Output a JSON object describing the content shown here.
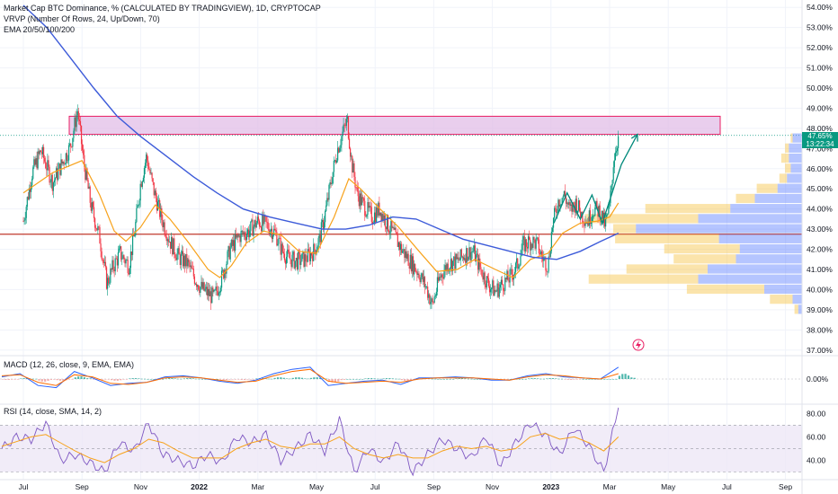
{
  "legend": {
    "main_title": "Market Cap BTC Dominance, % (CALCULATED BY TRADINGVIEW), 1D, CRYPTOCAP",
    "vrvp": "VRVP (Number Of Rows, 24, Up/Down, 70)",
    "ema": "EMA 20/50/100/200",
    "macd": "MACD (12, 26, close, 9, EMA, EMA)",
    "rsi": "RSI (14, close, SMA, 14, 2)"
  },
  "price_tag": {
    "value": "47.65%",
    "countdown": "13:22:34"
  },
  "colors": {
    "up": "#089981",
    "down": "#f23645",
    "ema_fast": "#f7a21b",
    "ema_slow": "#3d5bd9",
    "zone_fill": "#e1bee7",
    "zone_border": "#e91e63",
    "support": "#c0392b",
    "rsi_line": "#7e57c2",
    "rsi_band": "#ede7f6",
    "vp_up": "#5b7fff",
    "vp_down": "#f6c344"
  },
  "chart_data": [
    {
      "type": "candlestick",
      "title": "Market Cap BTC Dominance, % (CALCULATED BY TRADINGVIEW), 1D, CRYPTOCAP",
      "x_ticks": [
        "Jul",
        "Sep",
        "Nov",
        "2022",
        "Mar",
        "May",
        "Jul",
        "Sep",
        "Nov",
        "2023",
        "Mar",
        "May",
        "Jul",
        "Sep"
      ],
      "y_ticks": [
        "54.00%",
        "53.00%",
        "52.00%",
        "51.00%",
        "50.00%",
        "49.00%",
        "48.00%",
        "47.00%",
        "46.00%",
        "45.00%",
        "44.00%",
        "43.00%",
        "42.00%",
        "41.00%",
        "40.00%",
        "39.00%",
        "38.00%",
        "37.00%"
      ],
      "ylim": [
        36.9,
        54.1
      ],
      "last_value": 47.65,
      "resistance_zone": [
        47.7,
        48.6
      ],
      "support_level": 42.75,
      "close_path": [
        {
          "m": 0,
          "v": 43.4
        },
        {
          "m": 0.3,
          "v": 45.8
        },
        {
          "m": 0.6,
          "v": 46.9
        },
        {
          "m": 1.0,
          "v": 45.3
        },
        {
          "m": 1.3,
          "v": 46.2
        },
        {
          "m": 1.6,
          "v": 47.1
        },
        {
          "m": 1.85,
          "v": 48.9
        },
        {
          "m": 2.05,
          "v": 46.4
        },
        {
          "m": 2.3,
          "v": 44.2
        },
        {
          "m": 2.6,
          "v": 42.6
        },
        {
          "m": 2.85,
          "v": 40.3
        },
        {
          "m": 3.05,
          "v": 41.1
        },
        {
          "m": 3.3,
          "v": 41.8
        },
        {
          "m": 3.6,
          "v": 41.2
        },
        {
          "m": 3.8,
          "v": 42.9
        },
        {
          "m": 4.0,
          "v": 45.3
        },
        {
          "m": 4.2,
          "v": 46.6
        },
        {
          "m": 4.45,
          "v": 44.9
        },
        {
          "m": 4.7,
          "v": 43.6
        },
        {
          "m": 5.0,
          "v": 42.4
        },
        {
          "m": 5.3,
          "v": 41.6
        },
        {
          "m": 5.6,
          "v": 41.3
        },
        {
          "m": 5.8,
          "v": 40.7
        },
        {
          "m": 6.05,
          "v": 40.1
        },
        {
          "m": 6.3,
          "v": 39.8
        },
        {
          "m": 6.5,
          "v": 39.6
        },
        {
          "m": 6.75,
          "v": 40.5
        },
        {
          "m": 7.05,
          "v": 42.0
        },
        {
          "m": 7.4,
          "v": 42.7
        },
        {
          "m": 7.7,
          "v": 42.9
        },
        {
          "m": 8.0,
          "v": 43.4
        },
        {
          "m": 8.3,
          "v": 43.2
        },
        {
          "m": 8.6,
          "v": 42.8
        },
        {
          "m": 8.8,
          "v": 42.0
        },
        {
          "m": 9.0,
          "v": 41.6
        },
        {
          "m": 9.3,
          "v": 41.4
        },
        {
          "m": 9.6,
          "v": 41.5
        },
        {
          "m": 9.9,
          "v": 41.9
        },
        {
          "m": 10.1,
          "v": 42.5
        },
        {
          "m": 10.3,
          "v": 43.8
        },
        {
          "m": 10.5,
          "v": 45.4
        },
        {
          "m": 10.7,
          "v": 46.9
        },
        {
          "m": 10.9,
          "v": 47.8
        },
        {
          "m": 11.05,
          "v": 48.4
        },
        {
          "m": 11.2,
          "v": 46.3
        },
        {
          "m": 11.4,
          "v": 44.7
        },
        {
          "m": 11.65,
          "v": 44.1
        },
        {
          "m": 11.9,
          "v": 43.6
        },
        {
          "m": 12.15,
          "v": 44.0
        },
        {
          "m": 12.4,
          "v": 43.3
        },
        {
          "m": 12.65,
          "v": 42.7
        },
        {
          "m": 12.9,
          "v": 42.0
        },
        {
          "m": 13.2,
          "v": 41.4
        },
        {
          "m": 13.5,
          "v": 40.8
        },
        {
          "m": 13.75,
          "v": 40.1
        },
        {
          "m": 13.95,
          "v": 39.2
        },
        {
          "m": 14.2,
          "v": 40.6
        },
        {
          "m": 14.5,
          "v": 41.3
        },
        {
          "m": 14.8,
          "v": 41.4
        },
        {
          "m": 15.1,
          "v": 41.8
        },
        {
          "m": 15.35,
          "v": 41.9
        },
        {
          "m": 15.6,
          "v": 41.0
        },
        {
          "m": 15.85,
          "v": 40.3
        },
        {
          "m": 16.1,
          "v": 39.9
        },
        {
          "m": 16.35,
          "v": 40.3
        },
        {
          "m": 16.6,
          "v": 40.6
        },
        {
          "m": 16.85,
          "v": 41.2
        },
        {
          "m": 17.05,
          "v": 42.2
        },
        {
          "m": 17.3,
          "v": 42.4
        },
        {
          "m": 17.5,
          "v": 42.3
        },
        {
          "m": 17.7,
          "v": 41.6
        },
        {
          "m": 17.9,
          "v": 41.2
        },
        {
          "m": 18.05,
          "v": 43.2
        },
        {
          "m": 18.25,
          "v": 44.4
        },
        {
          "m": 18.45,
          "v": 44.7
        },
        {
          "m": 18.65,
          "v": 43.9
        },
        {
          "m": 18.85,
          "v": 44.3
        },
        {
          "m": 19.05,
          "v": 43.7
        },
        {
          "m": 19.25,
          "v": 43.4
        },
        {
          "m": 19.45,
          "v": 44.0
        },
        {
          "m": 19.65,
          "v": 43.9
        },
        {
          "m": 19.85,
          "v": 43.2
        },
        {
          "m": 20.0,
          "v": 44.1
        },
        {
          "m": 20.15,
          "v": 46.6
        },
        {
          "m": 20.3,
          "v": 47.6
        }
      ],
      "ema_fast": [
        {
          "m": 0.0,
          "v": 44.8
        },
        {
          "m": 1.0,
          "v": 45.8
        },
        {
          "m": 2.0,
          "v": 46.4
        },
        {
          "m": 2.6,
          "v": 44.7
        },
        {
          "m": 3.1,
          "v": 42.9
        },
        {
          "m": 3.5,
          "v": 42.4
        },
        {
          "m": 4.0,
          "v": 43.1
        },
        {
          "m": 4.5,
          "v": 44.2
        },
        {
          "m": 5.0,
          "v": 43.5
        },
        {
          "m": 5.6,
          "v": 42.4
        },
        {
          "m": 6.3,
          "v": 41.0
        },
        {
          "m": 6.7,
          "v": 40.6
        },
        {
          "m": 7.1,
          "v": 41.2
        },
        {
          "m": 7.6,
          "v": 42.3
        },
        {
          "m": 8.2,
          "v": 42.9
        },
        {
          "m": 8.8,
          "v": 42.7
        },
        {
          "m": 9.4,
          "v": 41.9
        },
        {
          "m": 10.0,
          "v": 41.8
        },
        {
          "m": 10.6,
          "v": 43.6
        },
        {
          "m": 11.1,
          "v": 45.5
        },
        {
          "m": 11.5,
          "v": 45.0
        },
        {
          "m": 12.1,
          "v": 44.1
        },
        {
          "m": 12.8,
          "v": 43.1
        },
        {
          "m": 13.5,
          "v": 41.9
        },
        {
          "m": 14.1,
          "v": 40.9
        },
        {
          "m": 14.8,
          "v": 41.0
        },
        {
          "m": 15.4,
          "v": 41.5
        },
        {
          "m": 16.1,
          "v": 41.0
        },
        {
          "m": 16.7,
          "v": 40.6
        },
        {
          "m": 17.3,
          "v": 41.5
        },
        {
          "m": 17.9,
          "v": 41.8
        },
        {
          "m": 18.4,
          "v": 42.8
        },
        {
          "m": 19.0,
          "v": 43.3
        },
        {
          "m": 19.6,
          "v": 43.4
        },
        {
          "m": 20.0,
          "v": 43.6
        },
        {
          "m": 20.3,
          "v": 44.3
        }
      ],
      "ema_slow": [
        {
          "m": 0.0,
          "v": 54.1
        },
        {
          "m": 0.8,
          "v": 53.0
        },
        {
          "m": 1.6,
          "v": 51.5
        },
        {
          "m": 2.4,
          "v": 50.0
        },
        {
          "m": 3.2,
          "v": 48.6
        },
        {
          "m": 4.0,
          "v": 47.6
        },
        {
          "m": 4.9,
          "v": 46.6
        },
        {
          "m": 5.8,
          "v": 45.6
        },
        {
          "m": 6.6,
          "v": 44.8
        },
        {
          "m": 7.5,
          "v": 44.0
        },
        {
          "m": 8.4,
          "v": 43.6
        },
        {
          "m": 9.3,
          "v": 43.3
        },
        {
          "m": 10.2,
          "v": 43.0
        },
        {
          "m": 11.0,
          "v": 43.0
        },
        {
          "m": 11.8,
          "v": 43.2
        },
        {
          "m": 12.6,
          "v": 43.6
        },
        {
          "m": 13.4,
          "v": 43.5
        },
        {
          "m": 14.2,
          "v": 43.0
        },
        {
          "m": 15.0,
          "v": 42.5
        },
        {
          "m": 15.8,
          "v": 42.2
        },
        {
          "m": 16.6,
          "v": 41.9
        },
        {
          "m": 17.4,
          "v": 41.6
        },
        {
          "m": 18.2,
          "v": 41.5
        },
        {
          "m": 19.0,
          "v": 41.9
        },
        {
          "m": 19.7,
          "v": 42.4
        },
        {
          "m": 20.3,
          "v": 42.8
        }
      ],
      "projection": [
        {
          "m": 18.1,
          "v": 43.3
        },
        {
          "m": 18.55,
          "v": 44.8
        },
        {
          "m": 19.0,
          "v": 43.5
        },
        {
          "m": 19.4,
          "v": 44.7
        },
        {
          "m": 19.75,
          "v": 43.3
        },
        {
          "m": 20.4,
          "v": 46.2
        },
        {
          "m": 20.95,
          "v": 47.7
        }
      ],
      "volume_profile": [
        {
          "v": 47.5,
          "up": 0.05,
          "down": 0.01
        },
        {
          "v": 47.0,
          "up": 0.07,
          "down": 0.02
        },
        {
          "v": 46.5,
          "up": 0.07,
          "down": 0.04
        },
        {
          "v": 46.0,
          "up": 0.06,
          "down": 0.03
        },
        {
          "v": 45.5,
          "up": 0.08,
          "down": 0.04
        },
        {
          "v": 45.0,
          "up": 0.13,
          "down": 0.11
        },
        {
          "v": 44.5,
          "up": 0.25,
          "down": 0.1
        },
        {
          "v": 44.0,
          "up": 0.38,
          "down": 0.45
        },
        {
          "v": 43.5,
          "up": 0.55,
          "down": 0.6
        },
        {
          "v": 43.0,
          "up": 0.88,
          "down": 0.12
        },
        {
          "v": 42.5,
          "up": 0.44,
          "down": 0.55
        },
        {
          "v": 42.0,
          "up": 0.33,
          "down": 0.4
        },
        {
          "v": 41.5,
          "up": 0.35,
          "down": 0.33
        },
        {
          "v": 41.0,
          "up": 0.5,
          "down": 0.43
        },
        {
          "v": 40.5,
          "up": 0.55,
          "down": 0.58
        },
        {
          "v": 40.0,
          "up": 0.2,
          "down": 0.41
        },
        {
          "v": 39.5,
          "up": 0.05,
          "down": 0.12
        },
        {
          "v": 39.0,
          "up": 0.02,
          "down": 0.02
        }
      ]
    },
    {
      "type": "line",
      "title": "MACD (12, 26, close, 9, EMA, EMA)",
      "y_ticks": [
        "0.00%"
      ],
      "series": [
        {
          "name": "MACD",
          "values": [
            0.2,
            0.5,
            -0.6,
            -0.8,
            0.7,
            0.1,
            -0.6,
            -0.4,
            -0.3,
            0.2,
            0.3,
            0.1,
            -0.2,
            -0.4,
            -0.1,
            0.5,
            0.9,
            1.1,
            -0.6,
            -0.4,
            -0.2,
            -0.1,
            -0.5,
            0.1,
            0.1,
            0.2,
            0.1,
            -0.1,
            -0.1,
            0.3,
            0.5,
            0.2,
            0.1,
            0.0,
            1.1
          ]
        },
        {
          "name": "Signal",
          "values": [
            0.3,
            0.4,
            -0.3,
            -0.6,
            0.4,
            0.2,
            -0.4,
            -0.5,
            -0.3,
            0.1,
            0.2,
            0.1,
            -0.1,
            -0.3,
            -0.2,
            0.3,
            0.7,
            0.9,
            -0.2,
            -0.4,
            -0.3,
            -0.2,
            -0.3,
            0.0,
            0.1,
            0.1,
            0.1,
            0.0,
            -0.1,
            0.2,
            0.4,
            0.3,
            0.1,
            0.0,
            0.5
          ]
        }
      ]
    },
    {
      "type": "line",
      "title": "RSI (14, close, SMA, 14, 2)",
      "y_ticks": [
        "80.00",
        "60.00",
        "40.00"
      ],
      "ylim": [
        25,
        88
      ],
      "bands": [
        70,
        50,
        30
      ],
      "series": [
        {
          "name": "RSI",
          "values": [
            50,
            60,
            58,
            72,
            40,
            45,
            38,
            30,
            55,
            48,
            72,
            45,
            40,
            35,
            45,
            38,
            60,
            55,
            62,
            40,
            50,
            62,
            48,
            75,
            30,
            50,
            38,
            55,
            30,
            45,
            58,
            50,
            42,
            60,
            35,
            55,
            72,
            62,
            45,
            68,
            52,
            30,
            85
          ]
        },
        {
          "name": "SMA",
          "values": [
            52,
            56,
            60,
            62,
            55,
            48,
            42,
            38,
            45,
            50,
            58,
            55,
            48,
            42,
            42,
            42,
            50,
            55,
            58,
            52,
            50,
            54,
            54,
            60,
            50,
            45,
            42,
            45,
            42,
            42,
            48,
            52,
            50,
            52,
            48,
            50,
            60,
            63,
            58,
            60,
            55,
            48,
            60
          ]
        }
      ]
    }
  ]
}
